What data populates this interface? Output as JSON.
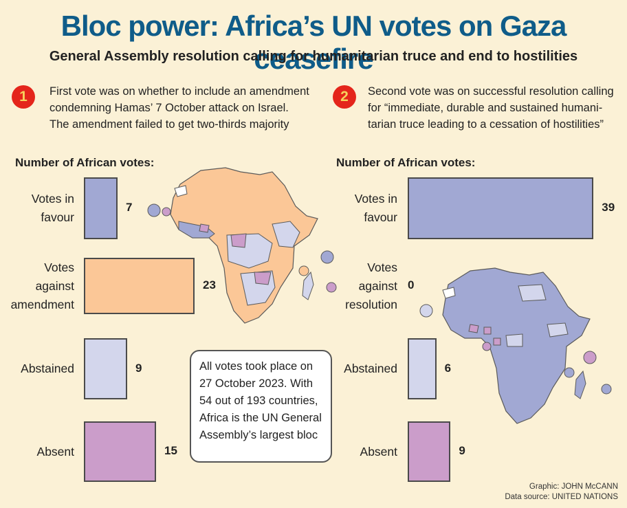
{
  "title": "Bloc power: Africa’s UN votes on Gaza ceasefire",
  "subtitle": "General Assembly resolution calling for humanitarian truce and end to hostilities",
  "vote1": {
    "number": "1",
    "lines": [
      "First vote was on whether to include an amendment",
      "condemning Hamas’ 7 October attack on Israel.",
      "The amendment failed to get two-thirds majority"
    ]
  },
  "vote2": {
    "number": "2",
    "lines": [
      "Second vote was on successful resolution calling",
      "for “immediate, durable and sustained humani-",
      "tarian truce leading to a cessation of hostilities”"
    ]
  },
  "panel_heading": "Number of African votes:",
  "info_box": [
    "All votes took place on",
    "27 October 2023. With",
    "54 out of 193 countries,",
    "Africa is the UN General",
    "Assembly’s largest bloc"
  ],
  "credits": {
    "graphic": "Graphic: JOHN McCANN",
    "source": "Data source: UNITED NATIONS"
  },
  "colors": {
    "favour": "#a1a8d3",
    "against": "#fbc797",
    "abstained": "#d3d6ec",
    "absent": "#cb9dca",
    "title": "#0f5c89",
    "badge": "#e4251b"
  },
  "chart_data": [
    {
      "type": "bar",
      "orientation": "horizontal",
      "title": "Number of African votes:",
      "categories": [
        "Votes in favour",
        "Votes against amendment",
        "Abstained",
        "Absent"
      ],
      "category_lines": [
        [
          "Votes in",
          "favour"
        ],
        [
          "Votes",
          "against",
          "amendment"
        ],
        [
          "Abstained"
        ],
        [
          "Absent"
        ]
      ],
      "values": [
        7,
        23,
        9,
        15
      ]
    },
    {
      "type": "bar",
      "orientation": "horizontal",
      "title": "Number of African votes:",
      "categories": [
        "Votes in favour",
        "Votes against resolution",
        "Abstained",
        "Absent"
      ],
      "category_lines": [
        [
          "Votes in",
          "favour"
        ],
        [
          "Votes",
          "against",
          "resolution"
        ],
        [
          "Abstained"
        ],
        [
          "Absent"
        ]
      ],
      "values": [
        39,
        0,
        6,
        9
      ]
    }
  ]
}
